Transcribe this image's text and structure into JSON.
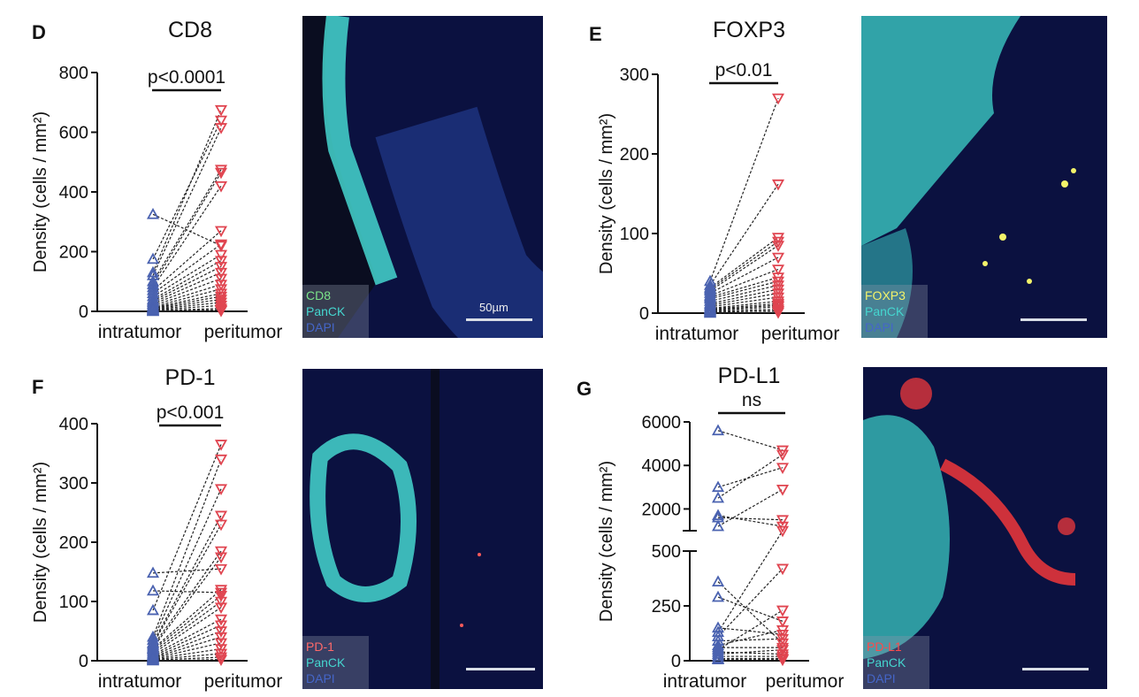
{
  "colors": {
    "intratumor": "#4a62b0",
    "peritumor": "#e04550",
    "pair_line": "#222222",
    "cd8_stain": "#7be38a",
    "panck_stain": "#45d6cf",
    "dapi_stain": "#4566c8",
    "foxp3_stain": "#f3f36a",
    "pd1_stain": "#ff5a5a",
    "pdl1_stain": "#ff3a3a"
  },
  "panels": [
    {
      "id": "D",
      "letter": "D",
      "title": "CD8",
      "pvalue": "p<0.0001",
      "legend": [
        "CD8",
        "PanCK",
        "DAPI"
      ],
      "scale_label": "50µm"
    },
    {
      "id": "E",
      "letter": "E",
      "title": "FOXP3",
      "pvalue": "p<0.01",
      "legend": [
        "FOXP3",
        "PanCK",
        "DAPI"
      ],
      "scale_label": ""
    },
    {
      "id": "F",
      "letter": "F",
      "title": "PD-1",
      "pvalue": "p<0.001",
      "legend": [
        "PD-1",
        "PanCK",
        "DAPI"
      ],
      "scale_label": ""
    },
    {
      "id": "G",
      "letter": "G",
      "title": "PD-L1",
      "pvalue": "ns",
      "legend": [
        "PD-L1",
        "PanCK",
        "DAPI"
      ],
      "scale_label": ""
    }
  ],
  "chart_data": [
    {
      "type": "scatter",
      "title": "CD8",
      "ylabel": "Density (cells / mm²)",
      "categories": [
        "intratumor",
        "peritumor"
      ],
      "ylim": [
        0,
        800
      ],
      "yticks": [
        0,
        200,
        400,
        600,
        800
      ],
      "annotation": "p<0.0001",
      "pairs": [
        [
          325,
          220
        ],
        [
          175,
          640
        ],
        [
          130,
          675
        ],
        [
          120,
          615
        ],
        [
          100,
          475
        ],
        [
          90,
          465
        ],
        [
          80,
          420
        ],
        [
          70,
          270
        ],
        [
          60,
          225
        ],
        [
          50,
          190
        ],
        [
          40,
          170
        ],
        [
          35,
          150
        ],
        [
          30,
          130
        ],
        [
          25,
          110
        ],
        [
          20,
          90
        ],
        [
          15,
          75
        ],
        [
          12,
          60
        ],
        [
          10,
          50
        ],
        [
          8,
          40
        ],
        [
          6,
          30
        ],
        [
          4,
          20
        ],
        [
          2,
          10
        ],
        [
          1,
          5
        ],
        [
          0,
          2
        ]
      ]
    },
    {
      "type": "scatter",
      "title": "FOXP3",
      "ylabel": "Density (cells / mm²)",
      "categories": [
        "intratumor",
        "peritumor"
      ],
      "ylim": [
        0,
        300
      ],
      "yticks": [
        0,
        100,
        200,
        300
      ],
      "annotation": "p<0.01",
      "pairs": [
        [
          40,
          270
        ],
        [
          35,
          162
        ],
        [
          32,
          95
        ],
        [
          30,
          90
        ],
        [
          28,
          85
        ],
        [
          25,
          70
        ],
        [
          22,
          55
        ],
        [
          20,
          45
        ],
        [
          18,
          40
        ],
        [
          15,
          35
        ],
        [
          12,
          30
        ],
        [
          10,
          25
        ],
        [
          8,
          20
        ],
        [
          6,
          15
        ],
        [
          5,
          12
        ],
        [
          4,
          10
        ],
        [
          3,
          8
        ],
        [
          2,
          5
        ],
        [
          1,
          3
        ],
        [
          0,
          1
        ]
      ]
    },
    {
      "type": "scatter",
      "title": "PD-1",
      "ylabel": "Density (cells / mm²)",
      "categories": [
        "intratumor",
        "peritumor"
      ],
      "ylim": [
        0,
        400
      ],
      "yticks": [
        0,
        100,
        200,
        300,
        400
      ],
      "annotation": "p<0.001",
      "pairs": [
        [
          148,
          155
        ],
        [
          118,
          115
        ],
        [
          85,
          365
        ],
        [
          40,
          340
        ],
        [
          35,
          290
        ],
        [
          30,
          245
        ],
        [
          28,
          230
        ],
        [
          25,
          185
        ],
        [
          22,
          175
        ],
        [
          20,
          120
        ],
        [
          18,
          110
        ],
        [
          15,
          100
        ],
        [
          12,
          90
        ],
        [
          10,
          70
        ],
        [
          8,
          60
        ],
        [
          6,
          50
        ],
        [
          5,
          40
        ],
        [
          4,
          30
        ],
        [
          3,
          20
        ],
        [
          2,
          12
        ],
        [
          1,
          6
        ],
        [
          0,
          2
        ]
      ]
    },
    {
      "type": "scatter",
      "title": "PD-L1",
      "ylabel": "Density (cells / mm²)",
      "categories": [
        "intratumor",
        "peritumor"
      ],
      "broken_axis": true,
      "upper_ylim": [
        1000,
        6000
      ],
      "upper_yticks": [
        2000,
        4000,
        6000
      ],
      "lower_ylim": [
        0,
        500
      ],
      "lower_yticks": [
        0,
        250,
        500
      ],
      "annotation": "ns",
      "pairs": [
        [
          5600,
          4700
        ],
        [
          3000,
          3900
        ],
        [
          2500,
          4500
        ],
        [
          1700,
          1200
        ],
        [
          1600,
          1500
        ],
        [
          1200,
          2900
        ],
        [
          360,
          80
        ],
        [
          290,
          180
        ],
        [
          150,
          120
        ],
        [
          130,
          1000
        ],
        [
          110,
          420
        ],
        [
          90,
          100
        ],
        [
          70,
          140
        ],
        [
          60,
          60
        ],
        [
          50,
          230
        ],
        [
          40,
          30
        ],
        [
          30,
          50
        ],
        [
          20,
          20
        ],
        [
          10,
          10
        ],
        [
          5,
          5
        ]
      ]
    }
  ]
}
